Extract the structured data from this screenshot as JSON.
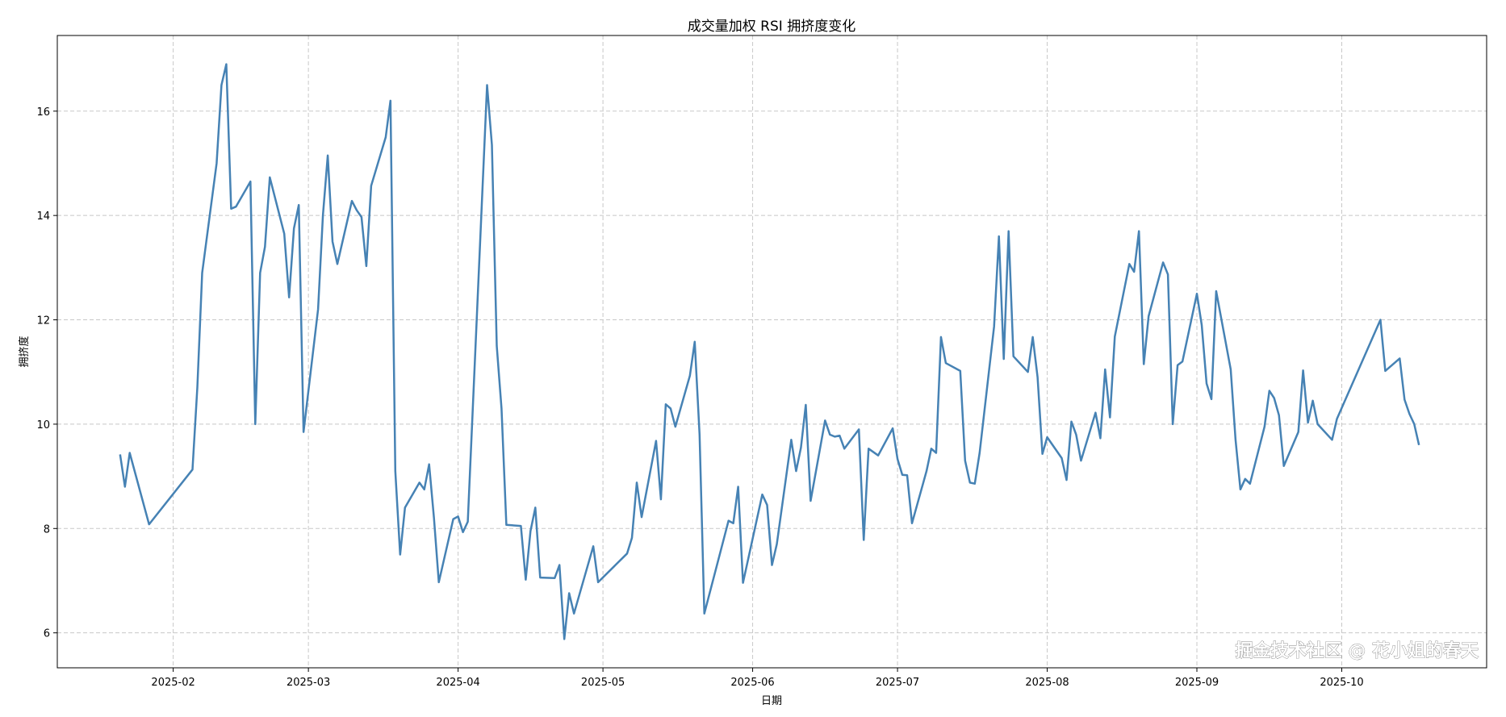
{
  "chart_data": {
    "type": "line",
    "title": "成交量加权 RSI 拥挤度变化",
    "xlabel": "日期",
    "ylabel": "拥挤度",
    "xlim": [
      "2025-01-08",
      "2025-10-31"
    ],
    "ylim": [
      5.33,
      17.45
    ],
    "grid": true,
    "line_color": "#4682b4",
    "x_ticks": [
      {
        "date": "2025-02-01",
        "label": "2025-02"
      },
      {
        "date": "2025-03-01",
        "label": "2025-03"
      },
      {
        "date": "2025-04-01",
        "label": "2025-04"
      },
      {
        "date": "2025-05-01",
        "label": "2025-05"
      },
      {
        "date": "2025-06-01",
        "label": "2025-06"
      },
      {
        "date": "2025-07-01",
        "label": "2025-07"
      },
      {
        "date": "2025-08-01",
        "label": "2025-08"
      },
      {
        "date": "2025-09-01",
        "label": "2025-09"
      },
      {
        "date": "2025-10-01",
        "label": "2025-10"
      }
    ],
    "y_ticks": [
      6,
      8,
      10,
      12,
      14,
      16
    ],
    "series": [
      {
        "name": "拥挤度",
        "x": [
          "2025-01-21",
          "2025-01-22",
          "2025-01-23",
          "2025-01-27",
          "2025-02-05",
          "2025-02-06",
          "2025-02-07",
          "2025-02-10",
          "2025-02-11",
          "2025-02-12",
          "2025-02-13",
          "2025-02-14",
          "2025-02-17",
          "2025-02-18",
          "2025-02-19",
          "2025-02-20",
          "2025-02-21",
          "2025-02-24",
          "2025-02-25",
          "2025-02-26",
          "2025-02-27",
          "2025-02-28",
          "2025-03-03",
          "2025-03-04",
          "2025-03-05",
          "2025-03-06",
          "2025-03-07",
          "2025-03-10",
          "2025-03-11",
          "2025-03-12",
          "2025-03-13",
          "2025-03-14",
          "2025-03-17",
          "2025-03-18",
          "2025-03-19",
          "2025-03-20",
          "2025-03-21",
          "2025-03-24",
          "2025-03-25",
          "2025-03-26",
          "2025-03-27",
          "2025-03-28",
          "2025-03-31",
          "2025-04-01",
          "2025-04-02",
          "2025-04-03",
          "2025-04-07",
          "2025-04-08",
          "2025-04-09",
          "2025-04-10",
          "2025-04-11",
          "2025-04-14",
          "2025-04-15",
          "2025-04-16",
          "2025-04-17",
          "2025-04-18",
          "2025-04-21",
          "2025-04-22",
          "2025-04-23",
          "2025-04-24",
          "2025-04-25",
          "2025-04-29",
          "2025-04-30",
          "2025-05-06",
          "2025-05-07",
          "2025-05-08",
          "2025-05-09",
          "2025-05-12",
          "2025-05-13",
          "2025-05-14",
          "2025-05-15",
          "2025-05-16",
          "2025-05-19",
          "2025-05-20",
          "2025-05-21",
          "2025-05-22",
          "2025-05-27",
          "2025-05-28",
          "2025-05-29",
          "2025-05-30",
          "2025-06-03",
          "2025-06-04",
          "2025-06-05",
          "2025-06-06",
          "2025-06-09",
          "2025-06-10",
          "2025-06-11",
          "2025-06-12",
          "2025-06-13",
          "2025-06-16",
          "2025-06-17",
          "2025-06-18",
          "2025-06-19",
          "2025-06-20",
          "2025-06-23",
          "2025-06-24",
          "2025-06-25",
          "2025-06-27",
          "2025-06-30",
          "2025-07-01",
          "2025-07-02",
          "2025-07-03",
          "2025-07-04",
          "2025-07-07",
          "2025-07-08",
          "2025-07-09",
          "2025-07-10",
          "2025-07-11",
          "2025-07-14",
          "2025-07-15",
          "2025-07-16",
          "2025-07-17",
          "2025-07-18",
          "2025-07-21",
          "2025-07-22",
          "2025-07-23",
          "2025-07-24",
          "2025-07-25",
          "2025-07-28",
          "2025-07-29",
          "2025-07-30",
          "2025-07-31",
          "2025-08-01",
          "2025-08-04",
          "2025-08-05",
          "2025-08-06",
          "2025-08-07",
          "2025-08-08",
          "2025-08-11",
          "2025-08-12",
          "2025-08-13",
          "2025-08-14",
          "2025-08-15",
          "2025-08-18",
          "2025-08-19",
          "2025-08-20",
          "2025-08-21",
          "2025-08-22",
          "2025-08-25",
          "2025-08-26",
          "2025-08-27",
          "2025-08-28",
          "2025-08-29",
          "2025-09-01",
          "2025-09-02",
          "2025-09-03",
          "2025-09-04",
          "2025-09-05",
          "2025-09-08",
          "2025-09-09",
          "2025-09-10",
          "2025-09-11",
          "2025-09-12",
          "2025-09-15",
          "2025-09-16",
          "2025-09-17",
          "2025-09-18",
          "2025-09-19",
          "2025-09-22",
          "2025-09-23",
          "2025-09-24",
          "2025-09-25",
          "2025-09-26",
          "2025-09-29",
          "2025-09-30",
          "2025-10-09",
          "2025-10-10",
          "2025-10-13",
          "2025-10-14",
          "2025-10-15",
          "2025-10-16",
          "2025-10-17"
        ],
        "values": [
          9.42,
          8.8,
          9.45,
          8.08,
          9.13,
          10.7,
          12.9,
          15.0,
          16.5,
          16.9,
          14.13,
          14.17,
          14.65,
          10.0,
          12.9,
          13.4,
          14.73,
          13.65,
          12.43,
          13.75,
          14.2,
          9.85,
          12.2,
          14.0,
          15.15,
          13.5,
          13.07,
          14.28,
          14.1,
          13.97,
          13.03,
          14.57,
          15.5,
          16.2,
          9.1,
          7.5,
          8.4,
          8.88,
          8.75,
          9.23,
          8.2,
          6.97,
          8.18,
          8.23,
          7.93,
          8.13,
          16.5,
          15.35,
          11.5,
          10.3,
          8.07,
          8.05,
          7.02,
          7.95,
          8.4,
          7.06,
          7.05,
          7.3,
          5.88,
          6.76,
          6.37,
          7.66,
          6.97,
          7.52,
          7.82,
          8.88,
          8.22,
          9.68,
          8.56,
          10.38,
          10.3,
          9.95,
          10.93,
          11.58,
          9.8,
          6.37,
          8.15,
          8.1,
          8.8,
          6.96,
          8.65,
          8.45,
          7.3,
          7.7,
          9.7,
          9.1,
          9.55,
          10.37,
          8.53,
          10.07,
          9.8,
          9.76,
          9.78,
          9.53,
          9.9,
          7.78,
          9.53,
          9.4,
          9.92,
          9.33,
          9.03,
          9.02,
          8.1,
          9.1,
          9.53,
          9.45,
          11.67,
          11.17,
          11.02,
          9.3,
          8.88,
          8.86,
          9.45,
          11.87,
          13.6,
          11.25,
          13.7,
          11.3,
          11.0,
          11.67,
          10.9,
          9.43,
          9.75,
          9.35,
          8.93,
          10.05,
          9.8,
          9.3,
          10.22,
          9.73,
          11.05,
          10.13,
          11.68,
          13.07,
          12.92,
          13.7,
          11.15,
          12.07,
          13.1,
          12.87,
          10.0,
          11.13,
          11.2,
          12.5,
          11.9,
          10.78,
          10.48,
          12.55,
          11.05,
          9.7,
          8.75,
          8.95,
          8.86,
          9.95,
          10.64,
          10.5,
          10.17,
          9.2,
          9.85,
          11.03,
          10.03,
          10.45,
          10.0,
          9.7,
          10.1,
          12.0,
          11.02,
          11.26,
          10.47,
          10.2,
          10.0,
          9.6
        ]
      }
    ]
  },
  "watermark": "掘金技术社区 @ 花小姐的春天"
}
